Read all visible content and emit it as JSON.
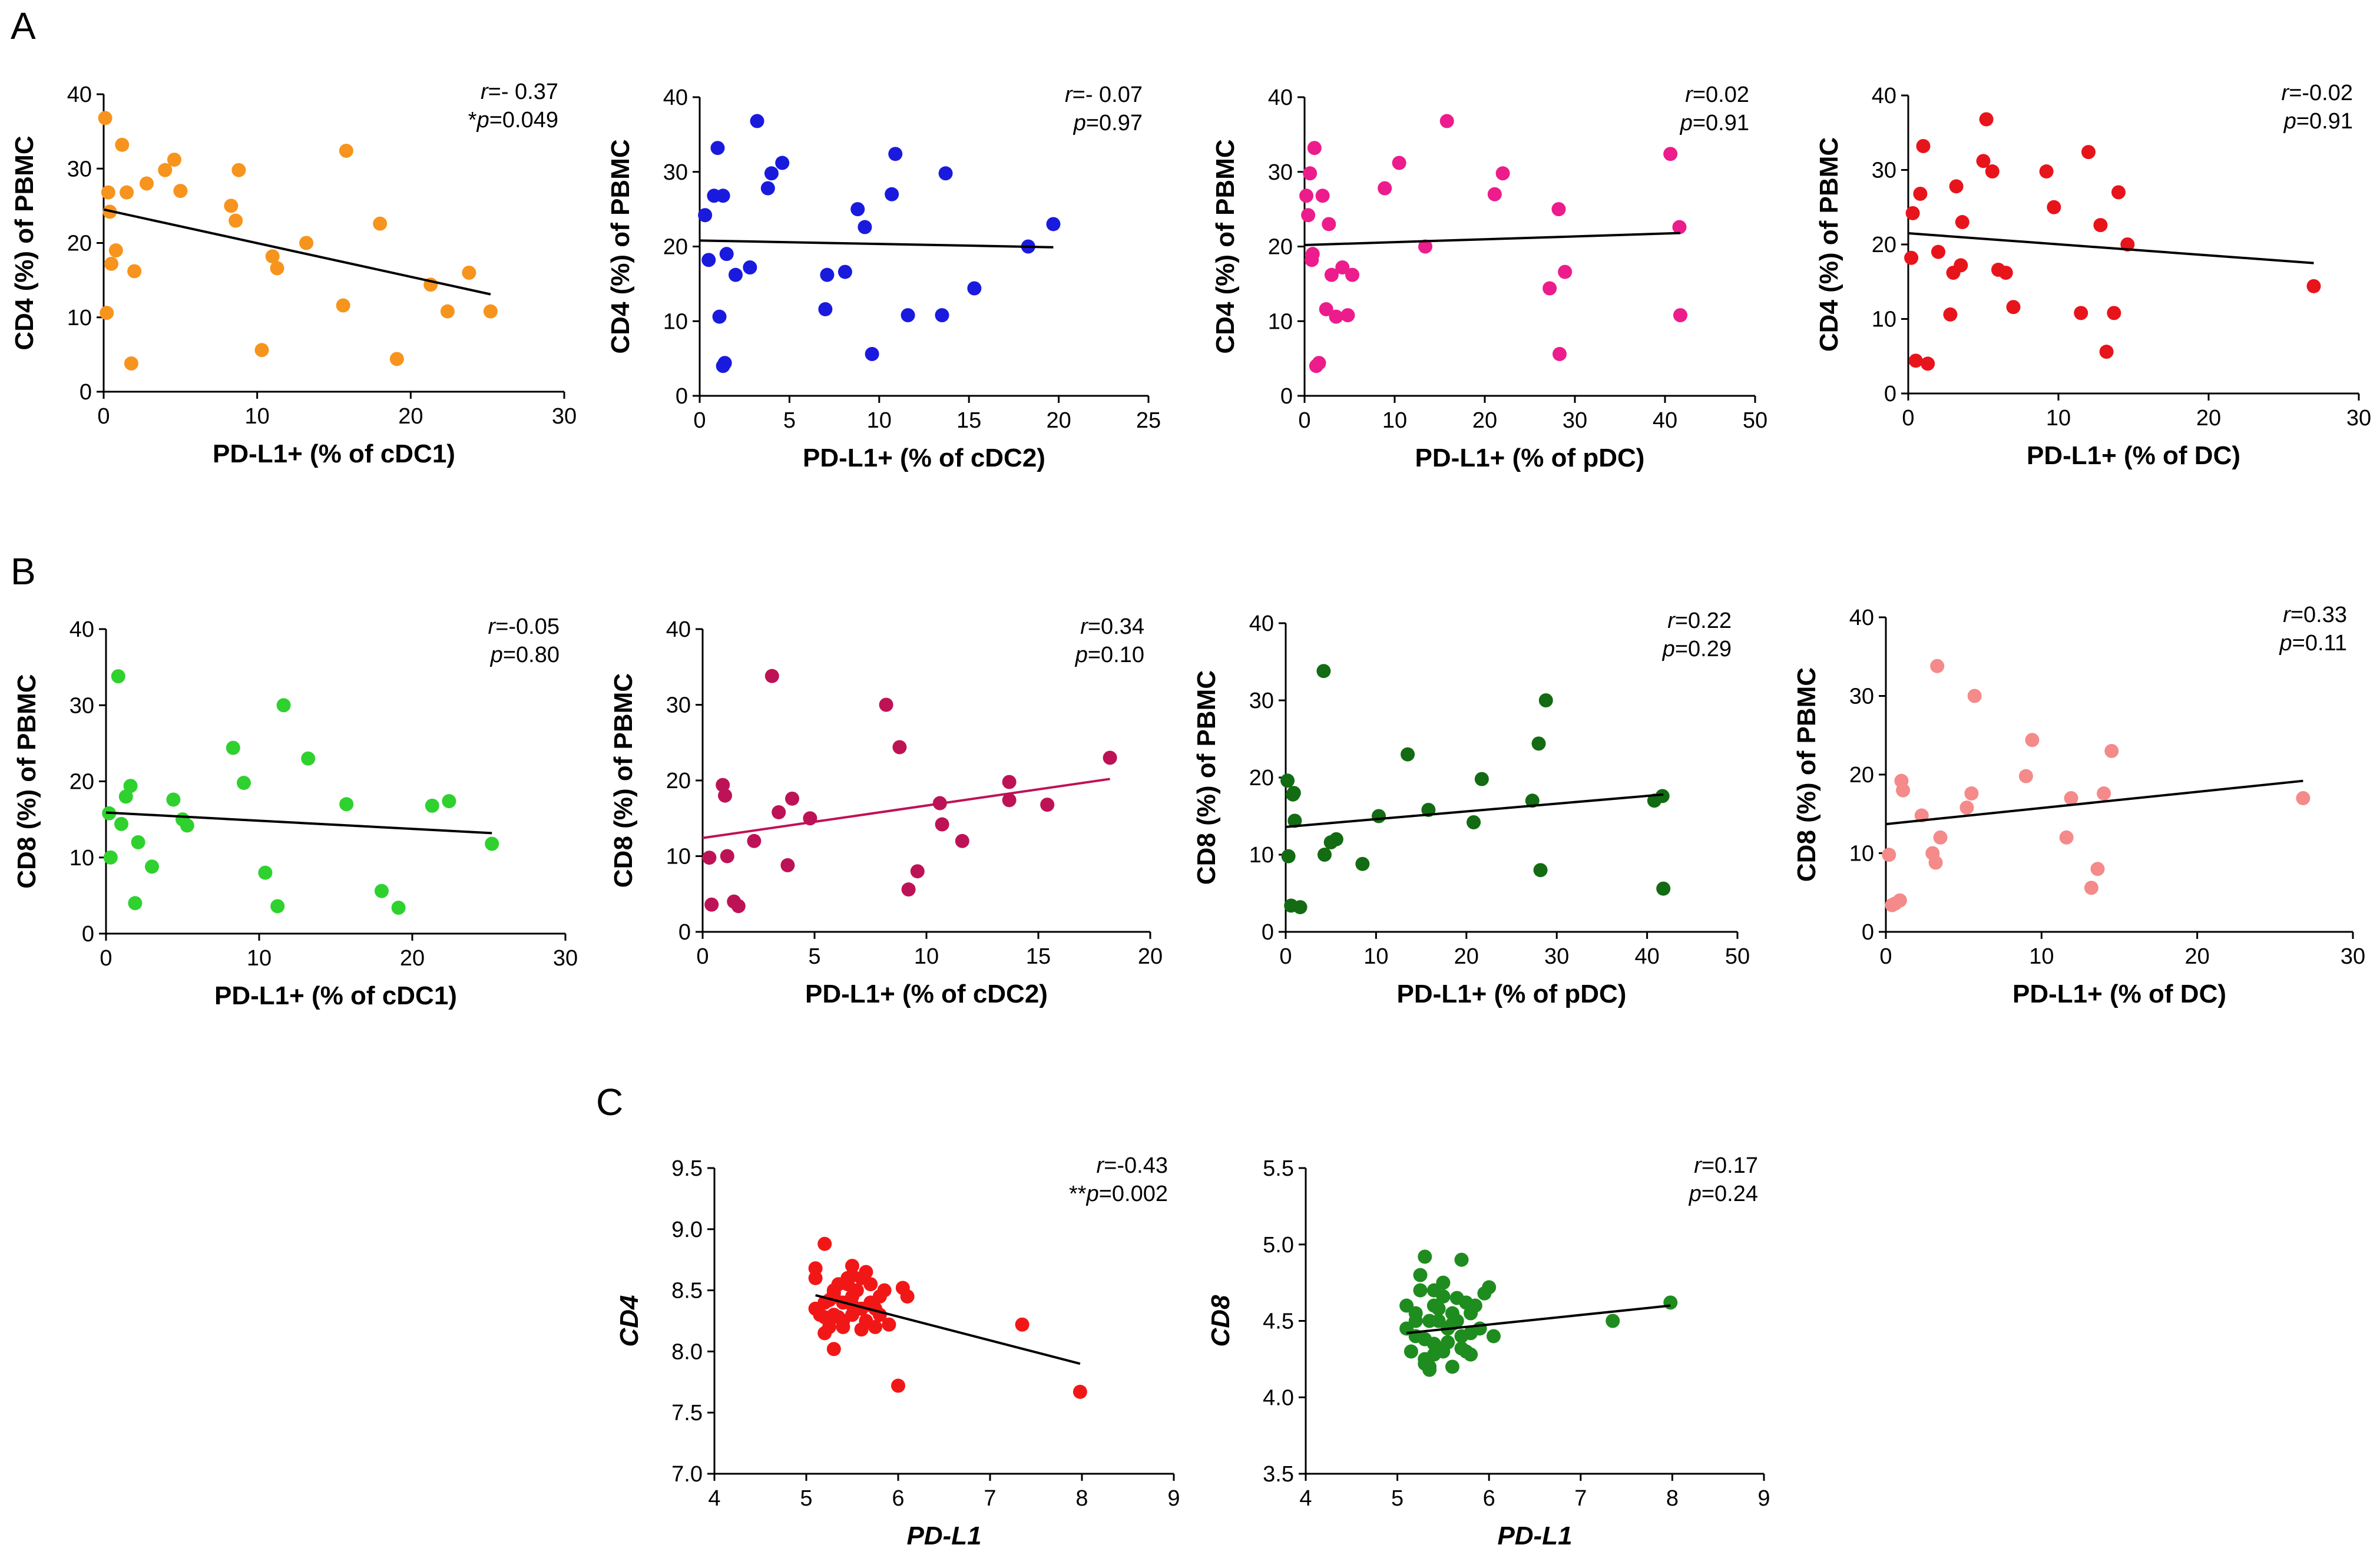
{
  "panel_labels": {
    "A": "A",
    "B": "B",
    "C": "C"
  },
  "colors": {
    "orange": "#f7941d",
    "blue": "#1a1adf",
    "pink": "#ec1c8c",
    "red": "#e8141c",
    "lightgreen": "#2fd12f",
    "crimson": "#be1256",
    "darkgreen": "#136b13",
    "salmon": "#f48a8a",
    "brightred": "#f21717",
    "green": "#1e8c1e",
    "black": "#000000"
  },
  "chart_data": [
    {
      "id": "A1",
      "type": "scatter",
      "color": "#f7941d",
      "line_color": "#000000",
      "xlabel": "PD-L1+ (% of cDC1)",
      "ylabel": "CD4 (%) of PBMC",
      "xlim": [
        0,
        30
      ],
      "ylim": [
        0,
        40
      ],
      "xticks": [
        "0",
        "10",
        "20",
        "30"
      ],
      "yticks": [
        "0",
        "10",
        "20",
        "30",
        "40"
      ],
      "stat_r": {
        "prefix": "",
        "r": "r",
        "text": "=- 0.37"
      },
      "stat_p": {
        "prefix": "*",
        "p": "p",
        "text": "=0.049"
      },
      "x": [
        0.1,
        0.2,
        0.3,
        0.4,
        0.5,
        0.8,
        1.2,
        1.5,
        1.8,
        2.0,
        2.8,
        4.0,
        4.6,
        5.0,
        8.3,
        8.6,
        8.8,
        10.3,
        11.0,
        11.3,
        13.2,
        15.6,
        15.8,
        18.0,
        19.1,
        21.3,
        22.4,
        23.8,
        25.2
      ],
      "y": [
        36.8,
        10.6,
        26.8,
        24.2,
        17.2,
        19.0,
        33.2,
        26.8,
        3.8,
        16.2,
        28.0,
        29.8,
        31.2,
        27.0,
        25.0,
        23.0,
        29.8,
        5.6,
        18.2,
        16.6,
        20.0,
        11.6,
        32.4,
        22.6,
        4.4,
        14.4,
        10.8,
        16.0,
        10.8
      ],
      "fit": [
        [
          0,
          24.5
        ],
        [
          25.2,
          13.1
        ]
      ]
    },
    {
      "id": "A2",
      "type": "scatter",
      "color": "#1a1adf",
      "line_color": "#000000",
      "xlabel": "PD-L1+ (% of cDC2)",
      "ylabel": "CD4 (%) of PBMC",
      "xlim": [
        0,
        25
      ],
      "ylim": [
        0,
        40
      ],
      "xticks": [
        "0",
        "5",
        "10",
        "15",
        "20",
        "25"
      ],
      "yticks": [
        "0",
        "10",
        "20",
        "30",
        "40"
      ],
      "stat_r": {
        "prefix": "",
        "r": "r",
        "text": "=- 0.07"
      },
      "stat_p": {
        "prefix": "",
        "p": "p",
        "text": "=0.97"
      },
      "x": [
        0.3,
        0.5,
        0.8,
        1.0,
        1.1,
        1.3,
        1.3,
        1.4,
        1.5,
        2.0,
        2.8,
        3.2,
        3.8,
        4.0,
        4.6,
        7.0,
        7.1,
        8.1,
        8.8,
        9.2,
        9.6,
        10.7,
        10.9,
        11.6,
        13.5,
        13.7,
        15.3,
        18.3,
        19.7
      ],
      "y": [
        24.2,
        18.2,
        26.8,
        33.2,
        10.6,
        26.8,
        4.0,
        4.4,
        19.0,
        16.2,
        17.2,
        36.8,
        27.8,
        29.8,
        31.2,
        11.6,
        16.2,
        16.6,
        25.0,
        22.6,
        5.6,
        27.0,
        32.4,
        10.8,
        10.8,
        29.8,
        14.4,
        20.0,
        23.0
      ],
      "fit": [
        [
          0,
          20.8
        ],
        [
          19.7,
          19.9
        ]
      ]
    },
    {
      "id": "A3",
      "type": "scatter",
      "color": "#ec1c8c",
      "line_color": "#000000",
      "xlabel": "PD-L1+ (% of pDC)",
      "ylabel": "CD4 (%) of PBMC",
      "xlim": [
        0,
        50
      ],
      "ylim": [
        0,
        40
      ],
      "xticks": [
        "0",
        "10",
        "20",
        "30",
        "40",
        "50"
      ],
      "yticks": [
        "0",
        "10",
        "20",
        "30",
        "40"
      ],
      "stat_r": {
        "prefix": "",
        "r": "r",
        "text": "=0.02"
      },
      "stat_p": {
        "prefix": "",
        "p": "p",
        "text": "=0.91"
      },
      "x": [
        0.2,
        0.4,
        0.6,
        0.8,
        0.9,
        1.1,
        1.3,
        1.6,
        2.0,
        2.4,
        2.7,
        3.0,
        3.5,
        4.2,
        4.8,
        5.3,
        8.9,
        10.5,
        13.4,
        15.8,
        21.1,
        22.0,
        27.2,
        28.2,
        28.3,
        28.9,
        40.6,
        41.6,
        41.7
      ],
      "y": [
        26.8,
        24.2,
        29.8,
        18.2,
        19.0,
        33.2,
        4.0,
        4.4,
        26.8,
        11.6,
        23.0,
        16.2,
        10.6,
        17.2,
        10.8,
        16.2,
        27.8,
        31.2,
        20.0,
        36.8,
        27.0,
        29.8,
        14.4,
        25.0,
        5.6,
        16.6,
        32.4,
        22.6,
        10.8
      ],
      "fit": [
        [
          0,
          20.2
        ],
        [
          41.7,
          21.8
        ]
      ]
    },
    {
      "id": "A4",
      "type": "scatter",
      "color": "#e8141c",
      "line_color": "#000000",
      "xlabel": "PD-L1+ (% of DC)",
      "ylabel": "CD4 (%) of PBMC",
      "xlim": [
        0,
        30
      ],
      "ylim": [
        0,
        40
      ],
      "xticks": [
        "0",
        "10",
        "20",
        "30"
      ],
      "yticks": [
        "0",
        "10",
        "20",
        "30",
        "40"
      ],
      "stat_r": {
        "prefix": "",
        "r": "r",
        "text": "=-0.02"
      },
      "stat_p": {
        "prefix": "",
        "p": "p",
        "text": "=0.91"
      },
      "x": [
        0.2,
        0.3,
        0.5,
        0.8,
        1.0,
        1.3,
        2.0,
        2.8,
        3.0,
        3.2,
        3.5,
        3.6,
        5.0,
        5.2,
        5.6,
        6.0,
        6.5,
        7.0,
        9.2,
        9.7,
        11.5,
        12.0,
        12.8,
        13.2,
        13.7,
        14.0,
        14.6,
        27.0
      ],
      "y": [
        18.2,
        24.2,
        4.4,
        26.8,
        33.2,
        4.0,
        19.0,
        10.6,
        16.2,
        27.8,
        17.2,
        23.0,
        31.2,
        36.8,
        29.8,
        16.6,
        16.2,
        11.6,
        29.8,
        25.0,
        10.8,
        32.4,
        22.6,
        5.6,
        10.8,
        27.0,
        20.0,
        14.4
      ],
      "fit": [
        [
          0,
          21.5
        ],
        [
          27.0,
          17.5
        ]
      ]
    },
    {
      "id": "B1",
      "type": "scatter",
      "color": "#2fd12f",
      "line_color": "#000000",
      "xlabel": "PD-L1+ (% of cDC1)",
      "ylabel": "CD8 (%) of PBMC",
      "xlim": [
        0,
        30
      ],
      "ylim": [
        0,
        40
      ],
      "xticks": [
        "0",
        "10",
        "20",
        "30"
      ],
      "yticks": [
        "0",
        "10",
        "20",
        "30",
        "40"
      ],
      "stat_r": {
        "prefix": "",
        "r": "r",
        "text": "=-0.05"
      },
      "stat_p": {
        "prefix": "",
        "p": "p",
        "text": "=0.80"
      },
      "x": [
        0.2,
        0.3,
        0.8,
        1.0,
        1.3,
        1.6,
        1.9,
        2.1,
        3.0,
        4.4,
        5.0,
        5.3,
        8.3,
        9.0,
        10.4,
        11.2,
        11.6,
        13.2,
        15.7,
        18.0,
        19.1,
        21.3,
        22.4,
        25.2
      ],
      "y": [
        15.8,
        10.0,
        33.8,
        14.4,
        18.0,
        19.4,
        4.0,
        12.0,
        8.8,
        17.6,
        15.0,
        14.2,
        24.4,
        19.8,
        8.0,
        3.6,
        30.0,
        23.0,
        17.0,
        5.6,
        3.4,
        16.8,
        17.4,
        11.8
      ],
      "fit": [
        [
          0,
          15.9
        ],
        [
          25.2,
          13.2
        ]
      ]
    },
    {
      "id": "B2",
      "type": "scatter",
      "color": "#be1256",
      "line_color": "#be1256",
      "xlabel": "PD-L1+ (% of cDC2)",
      "ylabel": "CD8 (%) of PBMC",
      "xlim": [
        0,
        20
      ],
      "ylim": [
        0,
        40
      ],
      "xticks": [
        "0",
        "5",
        "10",
        "15",
        "20"
      ],
      "yticks": [
        "0",
        "10",
        "20",
        "30",
        "40"
      ],
      "stat_r": {
        "prefix": "",
        "r": "r",
        "text": "=0.34"
      },
      "stat_p": {
        "prefix": "",
        "p": "p",
        "text": "=0.10"
      },
      "x": [
        0.3,
        0.4,
        0.9,
        1.0,
        1.1,
        1.4,
        1.6,
        2.3,
        3.1,
        3.4,
        3.8,
        4.0,
        4.8,
        8.2,
        8.8,
        9.2,
        9.6,
        10.6,
        10.7,
        11.6,
        13.7,
        13.7,
        15.4,
        18.2
      ],
      "y": [
        9.8,
        3.6,
        19.4,
        18.0,
        10.0,
        4.0,
        3.4,
        12.0,
        33.8,
        15.8,
        8.8,
        17.6,
        15.0,
        30.0,
        24.4,
        5.6,
        8.0,
        17.0,
        14.2,
        12.0,
        19.8,
        17.4,
        16.8,
        23.0
      ],
      "fit": [
        [
          0,
          12.4
        ],
        [
          18.2,
          20.2
        ]
      ]
    },
    {
      "id": "B3",
      "type": "scatter",
      "color": "#136b13",
      "line_color": "#000000",
      "xlabel": "PD-L1+ (% of pDC)",
      "ylabel": "CD8 (%) of PBMC",
      "xlim": [
        0,
        50
      ],
      "ylim": [
        0,
        40
      ],
      "xticks": [
        "0",
        "10",
        "20",
        "30",
        "40",
        "50"
      ],
      "yticks": [
        "0",
        "10",
        "20",
        "30",
        "40"
      ],
      "stat_r": {
        "prefix": "",
        "r": "r",
        "text": "=0.22"
      },
      "stat_p": {
        "prefix": "",
        "p": "p",
        "text": "=0.29"
      },
      "x": [
        0.2,
        0.3,
        0.6,
        0.8,
        0.9,
        1.0,
        1.6,
        4.2,
        4.3,
        5.0,
        5.6,
        8.5,
        10.3,
        13.5,
        15.8,
        20.8,
        21.7,
        27.3,
        28.0,
        28.2,
        28.8,
        40.8,
        41.7,
        41.8
      ],
      "y": [
        19.6,
        9.8,
        3.4,
        17.8,
        18.0,
        14.4,
        3.2,
        33.8,
        10.0,
        11.6,
        12.0,
        8.8,
        15.0,
        23.0,
        15.8,
        14.2,
        19.8,
        17.0,
        24.4,
        8.0,
        30.0,
        17.0,
        17.6,
        5.6
      ],
      "fit": [
        [
          0,
          13.6
        ],
        [
          41.8,
          17.8
        ]
      ]
    },
    {
      "id": "B4",
      "type": "scatter",
      "color": "#f48a8a",
      "line_color": "#000000",
      "xlabel": "PD-L1+ (% of DC)",
      "ylabel": "CD8 (%) of PBMC",
      "xlim": [
        0,
        30
      ],
      "ylim": [
        0,
        40
      ],
      "xticks": [
        "0",
        "10",
        "20",
        "30"
      ],
      "yticks": [
        "0",
        "10",
        "20",
        "30",
        "40"
      ],
      "stat_r": {
        "prefix": "",
        "r": "r",
        "text": "=0.33"
      },
      "stat_p": {
        "prefix": "",
        "p": "p",
        "text": "=0.11"
      },
      "x": [
        0.2,
        0.4,
        0.6,
        0.9,
        1.0,
        1.1,
        2.3,
        3.0,
        3.2,
        3.3,
        3.5,
        5.2,
        5.5,
        5.7,
        9.0,
        9.4,
        11.6,
        11.9,
        13.2,
        13.6,
        14.0,
        14.5,
        26.8
      ],
      "y": [
        9.8,
        3.4,
        3.6,
        4.0,
        19.2,
        18.0,
        14.8,
        10.0,
        8.8,
        33.8,
        12.0,
        15.8,
        17.6,
        30.0,
        19.8,
        24.4,
        12.0,
        17.0,
        5.6,
        8.0,
        17.6,
        23.0,
        17.0
      ],
      "fit": [
        [
          0,
          13.7
        ],
        [
          26.8,
          19.2
        ]
      ]
    },
    {
      "id": "C1",
      "type": "scatter",
      "color": "#f21717",
      "line_color": "#000000",
      "xlabel": "PD-L1",
      "ylabel": "CD4",
      "italic_labels": true,
      "xlim": [
        4,
        9
      ],
      "ylim": [
        7.0,
        9.5
      ],
      "xticks": [
        "4",
        "5",
        "6",
        "7",
        "8",
        "9"
      ],
      "yticks": [
        "7.0",
        "7.5",
        "8.0",
        "8.5",
        "9.0",
        "9.5"
      ],
      "stat_r": {
        "prefix": "",
        "r": "r",
        "text": "=-0.43"
      },
      "stat_p": {
        "prefix": "**",
        "p": "p",
        "text": "=0.002"
      },
      "x": [
        5.1,
        5.1,
        5.15,
        5.2,
        5.2,
        5.25,
        5.3,
        5.3,
        5.35,
        5.4,
        5.4,
        5.45,
        5.5,
        5.5,
        5.5,
        5.55,
        5.6,
        5.6,
        5.65,
        5.7,
        5.7,
        5.75,
        5.8,
        5.8,
        5.85,
        5.1,
        5.2,
        5.3,
        5.4,
        5.5,
        5.6,
        5.7,
        5.25,
        5.35,
        5.45,
        5.65,
        5.75,
        5.3,
        5.9,
        6.05,
        6.1,
        5.2,
        5.3,
        5.5,
        6.0,
        7.35,
        7.98
      ],
      "y": [
        8.35,
        8.6,
        8.3,
        8.88,
        8.4,
        8.2,
        8.5,
        8.3,
        8.55,
        8.4,
        8.2,
        8.6,
        8.7,
        8.45,
        8.3,
        8.5,
        8.35,
        8.6,
        8.25,
        8.55,
        8.4,
        8.2,
        8.45,
        8.3,
        8.5,
        8.68,
        8.15,
        8.02,
        8.25,
        8.62,
        8.18,
        8.38,
        8.42,
        8.28,
        8.55,
        8.65,
        8.35,
        8.48,
        8.22,
        8.52,
        8.45,
        8.28,
        8.45,
        8.38,
        7.72,
        8.22,
        7.67
      ],
      "fit": [
        [
          5.1,
          8.46
        ],
        [
          7.98,
          7.9
        ]
      ]
    },
    {
      "id": "C2",
      "type": "scatter",
      "color": "#1e8c1e",
      "line_color": "#000000",
      "xlabel": "PD-L1",
      "ylabel": "CD8",
      "italic_labels": true,
      "xlim": [
        4,
        9
      ],
      "ylim": [
        3.5,
        5.5
      ],
      "xticks": [
        "4",
        "5",
        "6",
        "7",
        "8",
        "9"
      ],
      "yticks": [
        "3.5",
        "4.0",
        "4.5",
        "5.0",
        "5.5"
      ],
      "stat_r": {
        "prefix": "",
        "r": "r",
        "text": "=0.17"
      },
      "stat_p": {
        "prefix": "",
        "p": "p",
        "text": "=0.24"
      },
      "x": [
        5.1,
        5.1,
        5.15,
        5.2,
        5.2,
        5.25,
        5.3,
        5.3,
        5.35,
        5.35,
        5.4,
        5.4,
        5.45,
        5.5,
        5.5,
        5.55,
        5.6,
        5.6,
        5.65,
        5.7,
        5.7,
        5.75,
        5.8,
        5.8,
        5.85,
        5.9,
        5.95,
        6.0,
        6.05,
        5.25,
        5.35,
        5.45,
        5.55,
        5.65,
        5.75,
        5.3,
        5.4,
        5.5,
        5.6,
        5.7,
        5.8,
        5.2,
        5.4,
        5.3,
        7.35,
        7.98
      ],
      "y": [
        4.45,
        4.6,
        4.3,
        4.55,
        4.4,
        4.7,
        4.92,
        4.25,
        4.5,
        4.2,
        4.6,
        4.35,
        4.5,
        4.75,
        4.3,
        4.45,
        4.55,
        4.2,
        4.65,
        4.4,
        4.9,
        4.3,
        4.55,
        4.28,
        4.6,
        4.45,
        4.68,
        4.72,
        4.4,
        4.8,
        4.18,
        4.58,
        4.36,
        4.5,
        4.62,
        4.38,
        4.28,
        4.66,
        4.48,
        4.32,
        4.42,
        4.5,
        4.7,
        4.22,
        4.5,
        4.62
      ],
      "fit": [
        [
          5.1,
          4.42
        ],
        [
          7.98,
          4.6
        ]
      ]
    }
  ]
}
